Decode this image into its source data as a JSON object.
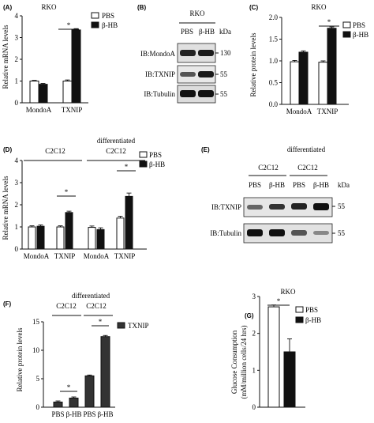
{
  "panels": {
    "A": {
      "label": "(A)",
      "title": "RKO",
      "ylabel": "Relative mRNA levels",
      "yticks": [
        "0",
        "1",
        "2",
        "3",
        "4"
      ],
      "legend": [
        "PBS",
        "β-HB"
      ],
      "categories": [
        "MondoA",
        "TXNIP"
      ],
      "sig": "*"
    },
    "B": {
      "label": "(B)",
      "title": "RKO",
      "col_labels": [
        "PBS",
        "β-HB"
      ],
      "kda_label": "kDa",
      "rows": [
        {
          "name": "IB:MondoA",
          "kda": "130"
        },
        {
          "name": "IB:TXNIP",
          "kda": "55"
        },
        {
          "name": "IB:Tubulin",
          "kda": "55"
        }
      ]
    },
    "C": {
      "label": "(C)",
      "title": "RKO",
      "ylabel": "Relative protein levels",
      "yticks": [
        "0.0",
        "0.5",
        "1.0",
        "1.5",
        "2.0"
      ],
      "legend": [
        "PBS",
        "β-HB"
      ],
      "categories": [
        "MondoA",
        "TXNIP"
      ],
      "sig": "*"
    },
    "D": {
      "label": "(D)",
      "group_top": "differentiated",
      "groups": [
        "C2C12",
        "C2C12"
      ],
      "ylabel": "Relative mRNA levels",
      "yticks": [
        "0",
        "1",
        "2",
        "3",
        "4"
      ],
      "legend": [
        "PBS",
        "β-HB"
      ],
      "categories": [
        "MondoA",
        "TXNIP",
        "MondoA",
        "TXNIP"
      ],
      "sig": [
        "*",
        "*"
      ]
    },
    "E": {
      "label": "(E)",
      "group_top": "differentiated",
      "groups": [
        "C2C12",
        "C2C12"
      ],
      "col_labels": [
        "PBS",
        "β-HB",
        "PBS",
        "β-HB"
      ],
      "kda_label": "kDa",
      "rows": [
        {
          "name": "IB:TXNIP",
          "kda": "55"
        },
        {
          "name": "IB:Tubulin",
          "kda": "55"
        }
      ]
    },
    "F": {
      "label": "(F)",
      "group_top": "differentiated",
      "groups": [
        "C2C12",
        "C2C12"
      ],
      "ylabel": "Relative protein levels",
      "yticks": [
        "0",
        "5",
        "10",
        "15"
      ],
      "legend": [
        "TXNIP"
      ],
      "xlabels": [
        "PBS",
        "β-HB",
        "PBS",
        "β-HB"
      ],
      "sig": [
        "*",
        "*"
      ]
    },
    "G": {
      "label": "(G)",
      "title": "RKO",
      "ylabel_lines": [
        "Glucose Consumption",
        "(mM/million cells/24 hrs)"
      ],
      "yticks": [
        "0",
        "1",
        "2",
        "3"
      ],
      "legend": [
        "PBS",
        "β-HB"
      ],
      "sig": "*"
    }
  },
  "chart_data": [
    {
      "id": "A",
      "type": "bar",
      "ylim": [
        0,
        4
      ],
      "categories": [
        "MondoA",
        "TXNIP"
      ],
      "series": [
        {
          "name": "PBS",
          "values": [
            1.0,
            1.0
          ],
          "errors": [
            0.03,
            0.05
          ]
        },
        {
          "name": "β-HB",
          "values": [
            0.85,
            3.35
          ],
          "errors": [
            0.04,
            0.06
          ]
        }
      ]
    },
    {
      "id": "C",
      "type": "bar",
      "ylim": [
        0,
        2
      ],
      "categories": [
        "MondoA",
        "TXNIP"
      ],
      "series": [
        {
          "name": "PBS",
          "values": [
            0.98,
            0.97
          ],
          "errors": [
            0.03,
            0.03
          ]
        },
        {
          "name": "β-HB",
          "values": [
            1.2,
            1.75
          ],
          "errors": [
            0.03,
            0.03
          ]
        }
      ]
    },
    {
      "id": "D",
      "type": "bar",
      "ylim": [
        0,
        4
      ],
      "categories": [
        "MondoA",
        "TXNIP",
        "MondoA",
        "TXNIP"
      ],
      "series": [
        {
          "name": "PBS",
          "values": [
            1.0,
            1.0,
            0.98,
            1.4
          ],
          "errors": [
            0.05,
            0.05,
            0.06,
            0.08
          ]
        },
        {
          "name": "β-HB",
          "values": [
            1.03,
            1.65,
            0.88,
            2.38
          ],
          "errors": [
            0.06,
            0.06,
            0.08,
            0.15
          ]
        }
      ]
    },
    {
      "id": "F",
      "type": "bar",
      "ylim": [
        0,
        15
      ],
      "categories": [
        "PBS",
        "β-HB",
        "PBS",
        "β-HB"
      ],
      "series": [
        {
          "name": "TXNIP",
          "values": [
            0.9,
            1.6,
            5.5,
            12.4
          ],
          "errors": [
            0.2,
            0.2,
            0.15,
            0.2
          ]
        }
      ]
    },
    {
      "id": "G",
      "type": "bar",
      "ylim": [
        0,
        3
      ],
      "categories": [
        "PBS",
        "β-HB"
      ],
      "series": [
        {
          "name": "Glucose Consumption",
          "values": [
            2.72,
            1.5
          ],
          "errors": [
            0.05,
            0.35
          ]
        }
      ]
    }
  ]
}
